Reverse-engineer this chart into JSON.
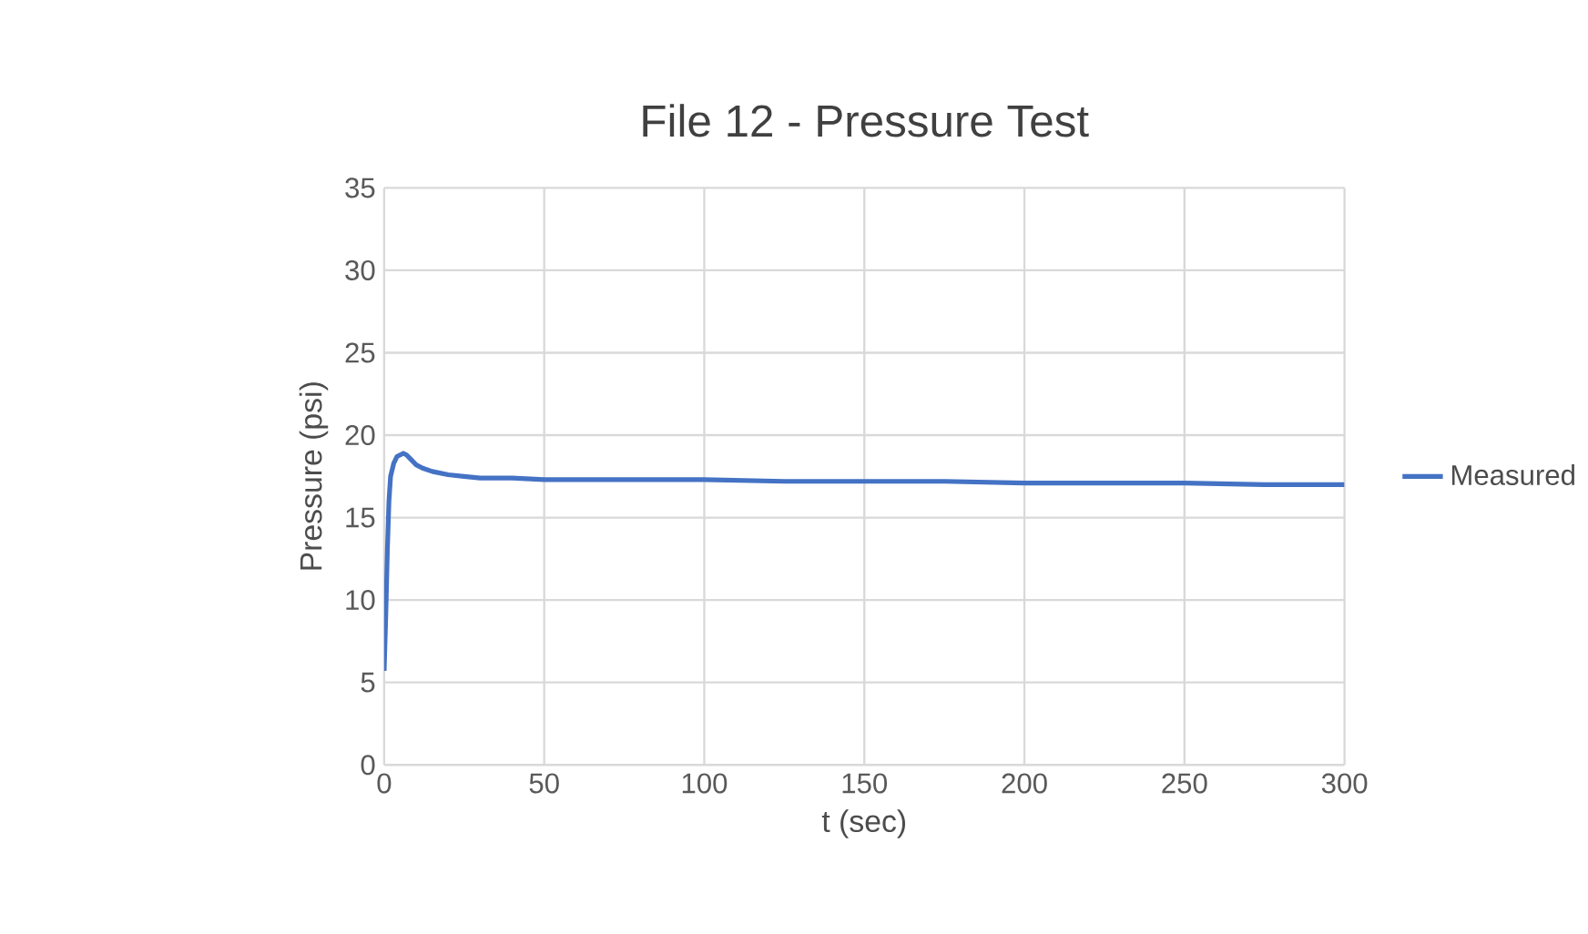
{
  "chart_data": {
    "type": "line",
    "title": "File 12 - Pressure Test",
    "xlabel": "t (sec)",
    "ylabel": "Pressure (psi)",
    "xlim": [
      0,
      300
    ],
    "xticks": [
      0,
      50,
      100,
      150,
      200,
      250,
      300
    ],
    "ylim": [
      0,
      35
    ],
    "yticks": [
      0,
      5,
      10,
      15,
      20,
      25,
      30,
      35
    ],
    "grid": true,
    "legend": "right",
    "marker": "none",
    "line_style": "solid",
    "series": [
      {
        "name": "Measured",
        "color": "#4472c4",
        "x": [
          0,
          0.5,
          1,
          1.5,
          2,
          3,
          4,
          5,
          6,
          7,
          8,
          10,
          12,
          15,
          20,
          25,
          30,
          40,
          50,
          75,
          100,
          125,
          150,
          175,
          200,
          225,
          250,
          275,
          300
        ],
        "values": [
          5.7,
          9,
          13,
          16,
          17.5,
          18.3,
          18.7,
          18.8,
          18.9,
          18.8,
          18.6,
          18.2,
          18.0,
          17.8,
          17.6,
          17.5,
          17.4,
          17.4,
          17.3,
          17.3,
          17.3,
          17.2,
          17.2,
          17.2,
          17.1,
          17.1,
          17.1,
          17.0,
          17.0
        ]
      }
    ]
  }
}
